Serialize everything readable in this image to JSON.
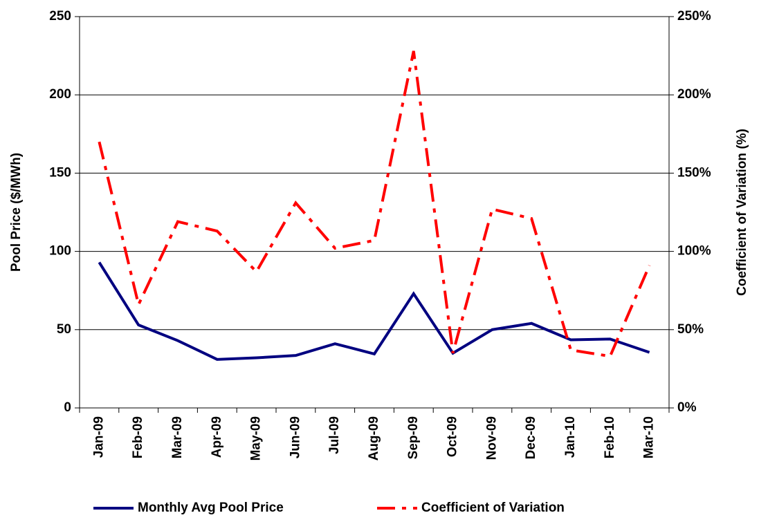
{
  "chart_data": {
    "type": "line",
    "y_label": "Pool Price ($/MWh)",
    "y2_label": "Coefficient of Variation (%)",
    "categories": [
      "Jan-09",
      "Feb-09",
      "Mar-09",
      "Apr-09",
      "May-09",
      "Jun-09",
      "Jul-09",
      "Aug-09",
      "Sep-09",
      "Oct-09",
      "Nov-09",
      "Dec-09",
      "Jan-10",
      "Feb-10",
      "Mar-10"
    ],
    "series": [
      {
        "name": "Monthly Avg Pool Price",
        "color": "#000080",
        "dash": "solid",
        "values": [
          93,
          53,
          43,
          31,
          32,
          33.5,
          41,
          34.5,
          73,
          35,
          50,
          54,
          43.5,
          44,
          35.5
        ]
      },
      {
        "name": "Coefficient of Variation",
        "color": "#ff0000",
        "dash": "dash-dot",
        "axis": "y2",
        "values": [
          170,
          66,
          119,
          113,
          87,
          131,
          102,
          107,
          228,
          35,
          127,
          121,
          37,
          33,
          91
        ]
      }
    ],
    "ylim": [
      0,
      250
    ],
    "yticks": [
      0,
      50,
      100,
      150,
      200,
      250
    ],
    "y2lim": [
      0,
      250
    ],
    "y2ticks": [
      {
        "value": 0,
        "label": "0%"
      },
      {
        "value": 50,
        "label": "50%"
      },
      {
        "value": 100,
        "label": "100%"
      },
      {
        "value": 150,
        "label": "150%"
      },
      {
        "value": 200,
        "label": "200%"
      },
      {
        "value": 250,
        "label": "250%"
      }
    ],
    "grid": true,
    "legend": "bottom"
  }
}
